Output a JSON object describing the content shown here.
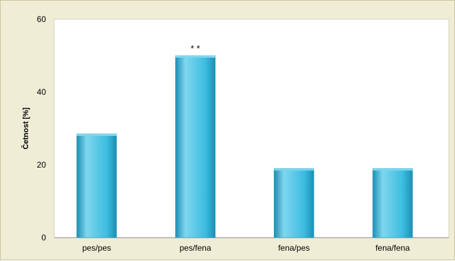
{
  "chart_data": {
    "type": "bar",
    "categories": [
      "pes/pes",
      "pes/fena",
      "fena/pes",
      "fena/fena"
    ],
    "values": [
      28.5,
      50,
      19,
      19
    ],
    "annotations": [
      {
        "category": "pes/fena",
        "text": "* *"
      }
    ],
    "title": "",
    "xlabel": "",
    "ylabel": "Četnost [%]",
    "ylim": [
      0,
      60
    ],
    "yticks": [
      0,
      20,
      40,
      60
    ],
    "grid": false,
    "legend": "none",
    "colors": {
      "bar": "#3cbde0",
      "bar_light": "#7fd6ee",
      "bar_dark": "#1c8fb4",
      "plot_background": "#ffffff",
      "frame_background": "#efedd6"
    }
  }
}
